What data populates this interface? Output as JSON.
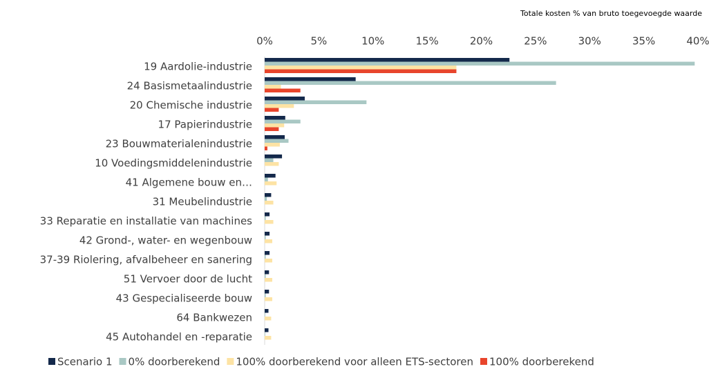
{
  "chart_data": {
    "type": "bar",
    "orientation": "horizontal",
    "title": "Totale kosten % van bruto toegevoegde waarde",
    "categories": [
      "19 Aardolie-industrie",
      "24 Basismetaalindustrie",
      "20 Chemische industrie",
      "17 Papierindustrie",
      "23 Bouwmaterialenindustrie",
      "10 Voedingsmiddelenindustrie",
      "41 Algemene bouw en…",
      "31 Meubelindustrie",
      "33 Reparatie en installatie van machines",
      "42 Grond-, water-  en wegenbouw",
      "37-39 Riolering, afvalbeheer en sanering",
      "51 Vervoer door de lucht",
      "43 Gespecialiseerde bouw",
      "64 Bankwezen",
      "45 Autohandel en -reparatie"
    ],
    "series": [
      {
        "name": "Scenario 1",
        "color": "#14294b",
        "values": [
          22.6,
          8.4,
          3.7,
          1.9,
          1.85,
          1.6,
          1.0,
          0.6,
          0.45,
          0.45,
          0.45,
          0.4,
          0.4,
          0.35,
          0.35
        ]
      },
      {
        "name": "0% doorberekend",
        "color": "#a9c8c4",
        "values": [
          39.7,
          26.9,
          9.4,
          3.3,
          2.2,
          0.8,
          0.3,
          0.2,
          0.1,
          0.1,
          0.1,
          0.1,
          0.1,
          0.05,
          0.05
        ]
      },
      {
        "name": "100% doorberekend voor alleen ETS-sectoren",
        "color": "#fde3a4",
        "values": [
          17.7,
          1.5,
          2.7,
          1.8,
          1.4,
          1.3,
          1.1,
          0.8,
          0.8,
          0.7,
          0.7,
          0.7,
          0.7,
          0.6,
          0.6
        ]
      },
      {
        "name": "100% doorberekend",
        "color": "#e8452c",
        "values": [
          17.7,
          3.3,
          1.3,
          1.3,
          0.25,
          0,
          0,
          0,
          0,
          0,
          0,
          0,
          0,
          0,
          0
        ]
      }
    ],
    "xlim": [
      0,
      40
    ],
    "xticks": [
      {
        "value": 0,
        "label": "0%"
      },
      {
        "value": 5,
        "label": "5%"
      },
      {
        "value": 10,
        "label": "10%"
      },
      {
        "value": 15,
        "label": "15%"
      },
      {
        "value": 20,
        "label": "20%"
      },
      {
        "value": 25,
        "label": "25%"
      },
      {
        "value": 30,
        "label": "30%"
      },
      {
        "value": 35,
        "label": "35%"
      },
      {
        "value": 40,
        "label": "40%"
      }
    ],
    "legend": "bottom"
  }
}
